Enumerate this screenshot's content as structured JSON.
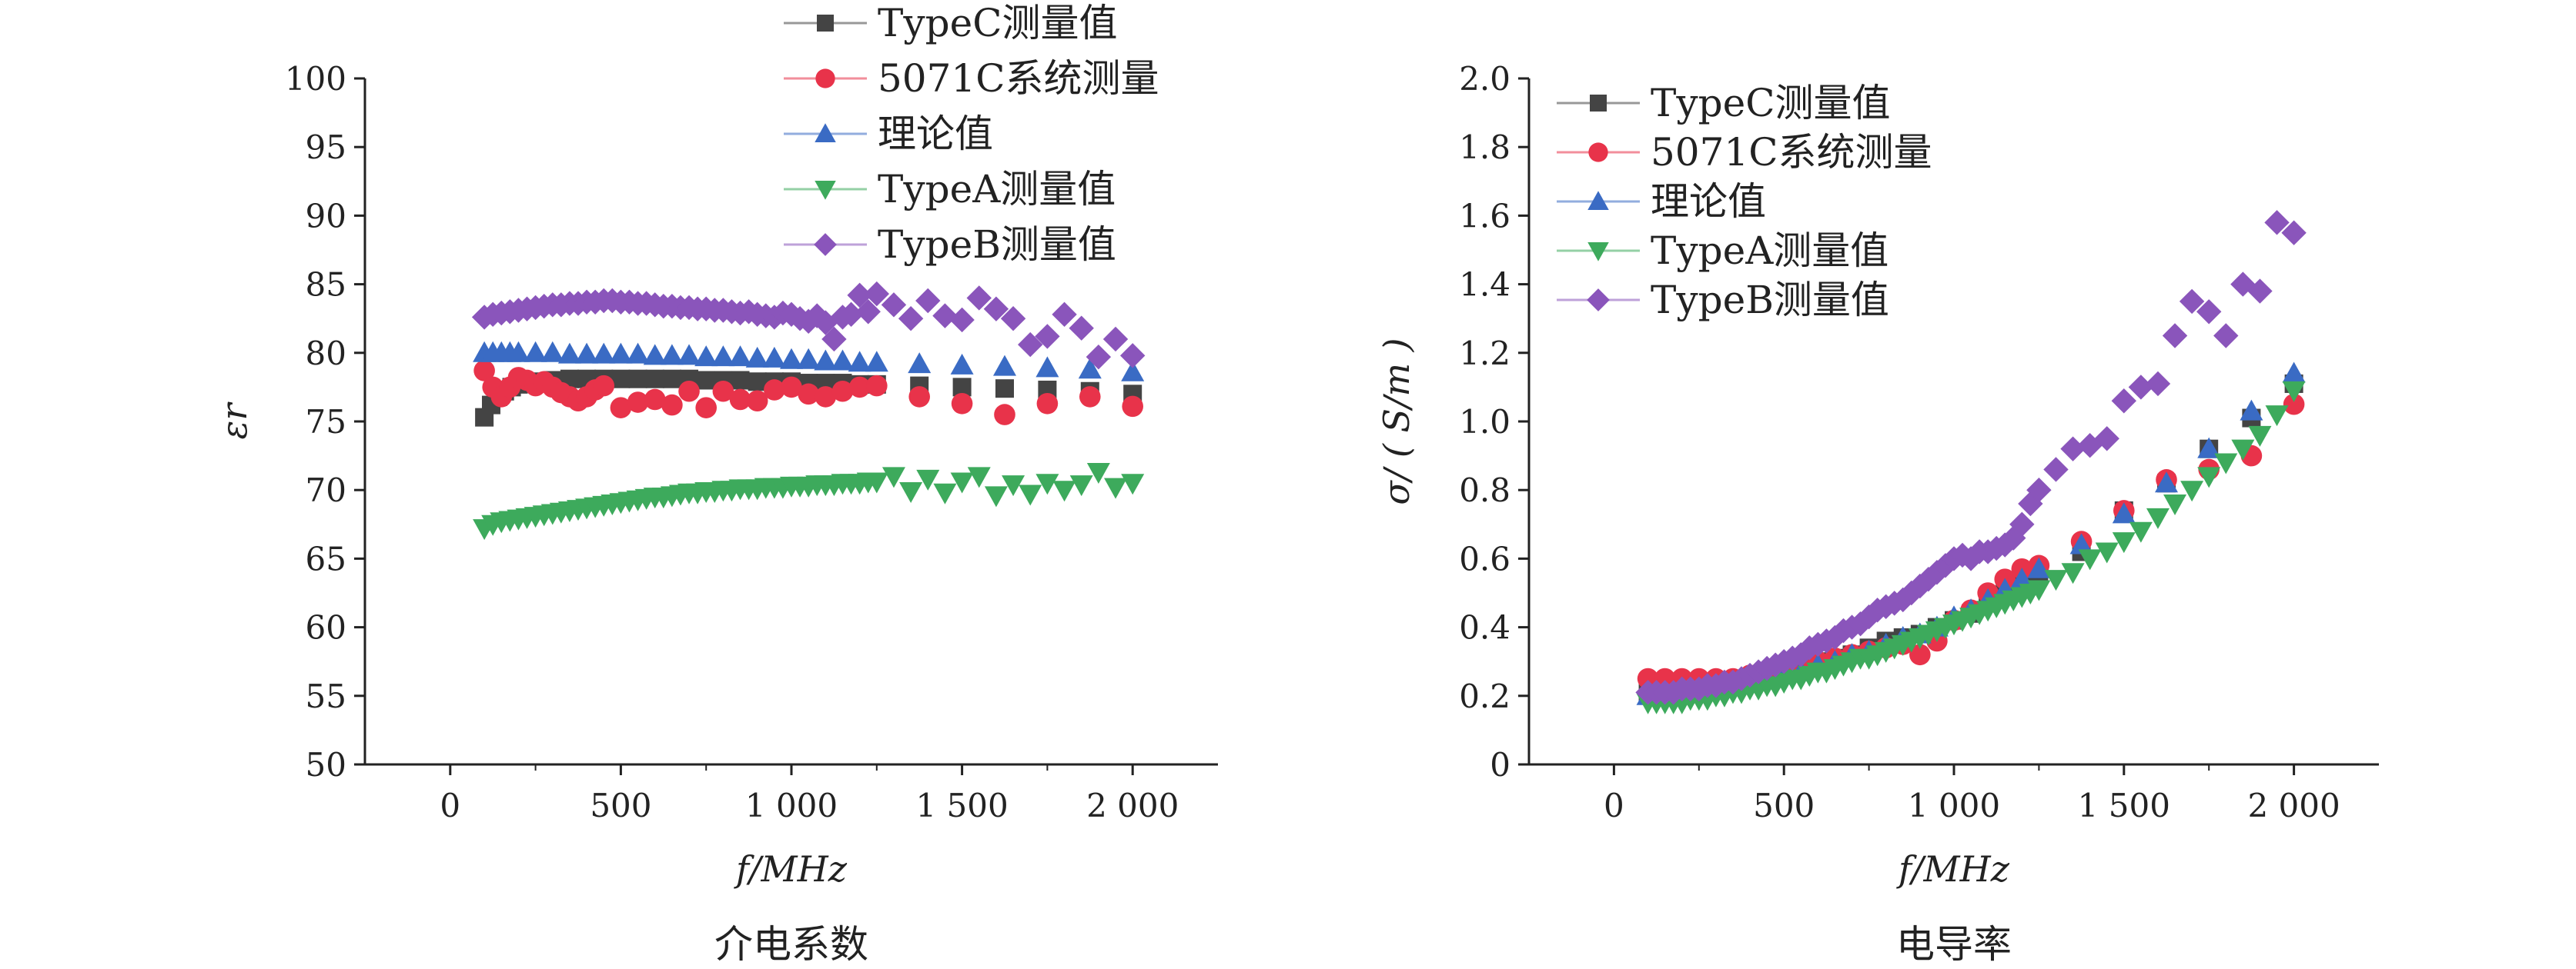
{
  "chart_data": [
    {
      "type": "scatter",
      "subtitle": "介电系数",
      "xlabel": "f/MHz",
      "ylabel": "εr",
      "xlim": [
        -250,
        2250
      ],
      "ylim": [
        50,
        100
      ],
      "xticks": [
        0,
        500,
        1000,
        1500,
        2000
      ],
      "xtick_labels": [
        "0",
        "500",
        "1 000",
        "1 500",
        "2 000"
      ],
      "yticks": [
        50,
        55,
        60,
        65,
        70,
        75,
        80,
        85,
        90,
        95,
        100
      ],
      "ytick_labels": [
        "50",
        "55",
        "60",
        "65",
        "70",
        "75",
        "80",
        "85",
        "90",
        "95",
        "100"
      ],
      "grid": false,
      "legend_position": "top, above plot",
      "series": [
        {
          "name": "TypeC测量值",
          "color": "#444444",
          "marker": "square",
          "x": [
            100,
            120,
            140,
            160,
            180,
            200,
            250,
            300,
            350,
            400,
            450,
            500,
            550,
            600,
            650,
            700,
            750,
            800,
            850,
            900,
            950,
            1000,
            1050,
            1100,
            1150,
            1200,
            1250,
            1375,
            1500,
            1625,
            1750,
            1875,
            2000
          ],
          "y": [
            75.3,
            76.2,
            76.8,
            77.2,
            77.5,
            77.7,
            77.9,
            78.0,
            78.1,
            78.1,
            78.1,
            78.1,
            78.1,
            78.1,
            78.1,
            78.1,
            78.0,
            78.0,
            78.0,
            77.9,
            77.9,
            77.9,
            77.8,
            77.8,
            77.8,
            77.7,
            77.7,
            77.6,
            77.5,
            77.4,
            77.3,
            77.2,
            77.0
          ]
        },
        {
          "name": "5071C系统测量",
          "color": "#e8334a",
          "marker": "circle",
          "x": [
            100,
            125,
            150,
            175,
            200,
            225,
            250,
            275,
            300,
            325,
            350,
            375,
            400,
            425,
            450,
            500,
            550,
            600,
            650,
            700,
            750,
            800,
            850,
            900,
            950,
            1000,
            1050,
            1100,
            1150,
            1200,
            1250,
            1375,
            1500,
            1625,
            1750,
            1875,
            2000
          ],
          "y": [
            78.7,
            77.5,
            76.8,
            77.5,
            78.2,
            78.0,
            77.6,
            77.9,
            77.5,
            77.1,
            76.8,
            76.5,
            76.8,
            77.3,
            77.6,
            76.0,
            76.4,
            76.6,
            76.2,
            77.2,
            76.0,
            77.2,
            76.6,
            76.5,
            77.3,
            77.5,
            77.0,
            76.8,
            77.2,
            77.5,
            77.6,
            76.8,
            76.3,
            75.5,
            76.3,
            76.8,
            76.1
          ]
        },
        {
          "name": "理论值",
          "color": "#3a6bc4",
          "marker": "triangle-up",
          "x": [
            100,
            125,
            150,
            175,
            200,
            250,
            300,
            350,
            400,
            450,
            500,
            550,
            600,
            650,
            700,
            750,
            800,
            850,
            900,
            950,
            1000,
            1050,
            1100,
            1150,
            1200,
            1250,
            1375,
            1500,
            1625,
            1750,
            1875,
            2000
          ],
          "y": [
            80.0,
            80.0,
            80.0,
            80.0,
            80.0,
            80.0,
            80.0,
            79.9,
            79.9,
            79.9,
            79.9,
            79.9,
            79.8,
            79.8,
            79.8,
            79.7,
            79.7,
            79.7,
            79.6,
            79.6,
            79.5,
            79.5,
            79.4,
            79.4,
            79.3,
            79.3,
            79.2,
            79.1,
            79.0,
            78.9,
            78.8,
            78.6
          ]
        },
        {
          "name": "TypeA测量值",
          "color": "#3daa5c",
          "marker": "triangle-down",
          "x": [
            100,
            125,
            150,
            175,
            200,
            225,
            250,
            275,
            300,
            325,
            350,
            375,
            400,
            425,
            450,
            475,
            500,
            525,
            550,
            575,
            600,
            625,
            650,
            675,
            700,
            725,
            750,
            775,
            800,
            825,
            850,
            875,
            900,
            925,
            950,
            975,
            1000,
            1025,
            1050,
            1075,
            1100,
            1125,
            1150,
            1175,
            1200,
            1225,
            1250,
            1300,
            1350,
            1400,
            1450,
            1500,
            1550,
            1600,
            1650,
            1700,
            1750,
            1800,
            1850,
            1900,
            1950,
            2000
          ],
          "y": [
            67.2,
            67.5,
            67.7,
            67.8,
            67.9,
            68.0,
            68.1,
            68.2,
            68.3,
            68.4,
            68.5,
            68.6,
            68.7,
            68.8,
            68.9,
            69.0,
            69.1,
            69.2,
            69.3,
            69.4,
            69.5,
            69.5,
            69.6,
            69.7,
            69.8,
            69.8,
            69.9,
            69.9,
            70.0,
            70.0,
            70.1,
            70.1,
            70.1,
            70.2,
            70.2,
            70.2,
            70.3,
            70.3,
            70.3,
            70.4,
            70.4,
            70.4,
            70.5,
            70.5,
            70.5,
            70.6,
            70.6,
            71.0,
            69.9,
            70.8,
            69.8,
            70.6,
            71.0,
            69.6,
            70.4,
            69.7,
            70.5,
            70.0,
            70.4,
            71.3,
            70.2,
            70.5
          ]
        },
        {
          "name": "TypeB测量值",
          "color": "#8a55bb",
          "marker": "diamond",
          "x": [
            100,
            125,
            150,
            175,
            200,
            225,
            250,
            275,
            300,
            325,
            350,
            375,
            400,
            425,
            450,
            475,
            500,
            525,
            550,
            575,
            600,
            625,
            650,
            675,
            700,
            725,
            750,
            775,
            800,
            825,
            850,
            875,
            900,
            925,
            950,
            975,
            1000,
            1025,
            1050,
            1075,
            1100,
            1125,
            1150,
            1175,
            1200,
            1225,
            1250,
            1300,
            1350,
            1400,
            1450,
            1500,
            1550,
            1600,
            1650,
            1700,
            1750,
            1800,
            1850,
            1900,
            1950,
            2000
          ],
          "y": [
            82.6,
            82.8,
            82.9,
            83.0,
            83.1,
            83.2,
            83.3,
            83.4,
            83.5,
            83.5,
            83.6,
            83.6,
            83.7,
            83.7,
            83.8,
            83.8,
            83.7,
            83.7,
            83.6,
            83.6,
            83.5,
            83.4,
            83.4,
            83.3,
            83.3,
            83.2,
            83.2,
            83.1,
            83.1,
            83.0,
            82.9,
            83.0,
            82.8,
            82.7,
            82.6,
            82.9,
            82.8,
            82.5,
            82.3,
            82.7,
            82.2,
            81.0,
            82.6,
            82.8,
            84.2,
            83.0,
            84.3,
            83.5,
            82.5,
            83.8,
            82.7,
            82.4,
            84.0,
            83.2,
            82.5,
            80.6,
            81.2,
            82.8,
            81.8,
            79.7,
            81.0,
            79.8
          ]
        }
      ]
    },
    {
      "type": "scatter",
      "subtitle": "电导率",
      "xlabel": "f/MHz",
      "ylabel": "σ/ ( S/m )",
      "xlim": [
        -250,
        2250
      ],
      "ylim": [
        0,
        2.0
      ],
      "xticks": [
        0,
        500,
        1000,
        1500,
        2000
      ],
      "xtick_labels": [
        "0",
        "500",
        "1 000",
        "1 500",
        "2 000"
      ],
      "yticks": [
        0,
        0.2,
        0.4,
        0.6,
        0.8,
        1.0,
        1.2,
        1.4,
        1.6,
        1.8,
        2.0
      ],
      "ytick_labels": [
        "0",
        "0.2",
        "0.4",
        "0.6",
        "0.8",
        "1.0",
        "1.2",
        "1.4",
        "1.6",
        "1.8",
        "2.0"
      ],
      "grid": false,
      "legend_position": "top-left, inside plot",
      "series": [
        {
          "name": "TypeC测量值",
          "color": "#444444",
          "marker": "square",
          "x": [
            100,
            150,
            200,
            250,
            300,
            350,
            400,
            450,
            500,
            550,
            600,
            650,
            700,
            750,
            800,
            850,
            900,
            950,
            1000,
            1050,
            1100,
            1150,
            1200,
            1250,
            1375,
            1500,
            1625,
            1750,
            1875,
            2000
          ],
          "y": [
            0.21,
            0.21,
            0.22,
            0.22,
            0.23,
            0.24,
            0.25,
            0.26,
            0.27,
            0.29,
            0.3,
            0.31,
            0.32,
            0.34,
            0.36,
            0.37,
            0.38,
            0.4,
            0.42,
            0.44,
            0.47,
            0.5,
            0.53,
            0.56,
            0.62,
            0.74,
            0.82,
            0.92,
            1.01,
            1.11
          ]
        },
        {
          "name": "5071C系统测量",
          "color": "#e8334a",
          "marker": "circle",
          "x": [
            100,
            150,
            200,
            250,
            300,
            350,
            400,
            450,
            500,
            550,
            600,
            650,
            700,
            750,
            800,
            850,
            900,
            950,
            1000,
            1050,
            1100,
            1150,
            1200,
            1250,
            1375,
            1500,
            1625,
            1750,
            1875,
            2000
          ],
          "y": [
            0.25,
            0.25,
            0.25,
            0.25,
            0.25,
            0.25,
            0.26,
            0.27,
            0.28,
            0.29,
            0.3,
            0.31,
            0.32,
            0.33,
            0.34,
            0.35,
            0.32,
            0.36,
            0.42,
            0.45,
            0.5,
            0.54,
            0.57,
            0.58,
            0.65,
            0.74,
            0.83,
            0.86,
            0.9,
            1.05
          ]
        },
        {
          "name": "理论值",
          "color": "#3a6bc4",
          "marker": "triangle-up",
          "x": [
            100,
            150,
            200,
            250,
            300,
            350,
            400,
            450,
            500,
            550,
            600,
            650,
            700,
            750,
            800,
            850,
            900,
            950,
            1000,
            1050,
            1100,
            1150,
            1200,
            1250,
            1375,
            1500,
            1625,
            1750,
            1875,
            2000
          ],
          "y": [
            0.2,
            0.2,
            0.21,
            0.21,
            0.22,
            0.23,
            0.24,
            0.25,
            0.26,
            0.27,
            0.29,
            0.3,
            0.32,
            0.33,
            0.35,
            0.37,
            0.38,
            0.4,
            0.43,
            0.45,
            0.48,
            0.51,
            0.54,
            0.57,
            0.64,
            0.73,
            0.82,
            0.92,
            1.03,
            1.14
          ]
        },
        {
          "name": "TypeA测量值",
          "color": "#3daa5c",
          "marker": "triangle-down",
          "x": [
            100,
            125,
            150,
            175,
            200,
            225,
            250,
            275,
            300,
            325,
            350,
            375,
            400,
            425,
            450,
            475,
            500,
            525,
            550,
            575,
            600,
            625,
            650,
            675,
            700,
            725,
            750,
            775,
            800,
            825,
            850,
            875,
            900,
            925,
            950,
            975,
            1000,
            1025,
            1050,
            1075,
            1100,
            1125,
            1150,
            1175,
            1200,
            1225,
            1250,
            1300,
            1350,
            1400,
            1450,
            1500,
            1550,
            1600,
            1650,
            1700,
            1750,
            1800,
            1850,
            1900,
            1950,
            2000
          ],
          "y": [
            0.18,
            0.18,
            0.18,
            0.18,
            0.18,
            0.19,
            0.19,
            0.19,
            0.2,
            0.2,
            0.21,
            0.21,
            0.22,
            0.22,
            0.23,
            0.23,
            0.24,
            0.25,
            0.25,
            0.26,
            0.27,
            0.27,
            0.28,
            0.29,
            0.3,
            0.31,
            0.31,
            0.32,
            0.33,
            0.34,
            0.35,
            0.36,
            0.37,
            0.38,
            0.39,
            0.4,
            0.41,
            0.42,
            0.43,
            0.44,
            0.45,
            0.46,
            0.47,
            0.48,
            0.49,
            0.5,
            0.51,
            0.54,
            0.56,
            0.6,
            0.62,
            0.65,
            0.68,
            0.72,
            0.76,
            0.8,
            0.84,
            0.88,
            0.92,
            0.96,
            1.02,
            1.09
          ]
        },
        {
          "name": "TypeB测量值",
          "color": "#8a55bb",
          "marker": "diamond",
          "x": [
            100,
            125,
            150,
            175,
            200,
            225,
            250,
            275,
            300,
            325,
            350,
            375,
            400,
            425,
            450,
            475,
            500,
            525,
            550,
            575,
            600,
            625,
            650,
            675,
            700,
            725,
            750,
            775,
            800,
            825,
            850,
            875,
            900,
            925,
            950,
            975,
            1000,
            1025,
            1050,
            1075,
            1100,
            1125,
            1150,
            1175,
            1200,
            1225,
            1250,
            1300,
            1350,
            1400,
            1450,
            1500,
            1550,
            1600,
            1650,
            1700,
            1750,
            1800,
            1850,
            1900,
            1950,
            2000
          ],
          "y": [
            0.21,
            0.21,
            0.21,
            0.21,
            0.22,
            0.22,
            0.22,
            0.23,
            0.23,
            0.24,
            0.24,
            0.25,
            0.26,
            0.27,
            0.28,
            0.29,
            0.3,
            0.31,
            0.32,
            0.34,
            0.35,
            0.36,
            0.37,
            0.39,
            0.4,
            0.41,
            0.43,
            0.45,
            0.46,
            0.47,
            0.48,
            0.5,
            0.52,
            0.54,
            0.56,
            0.58,
            0.6,
            0.61,
            0.6,
            0.62,
            0.62,
            0.63,
            0.64,
            0.66,
            0.7,
            0.76,
            0.8,
            0.86,
            0.92,
            0.93,
            0.95,
            1.06,
            1.1,
            1.11,
            1.25,
            1.35,
            1.32,
            1.25,
            1.4,
            1.38,
            1.58,
            1.55
          ]
        }
      ]
    }
  ]
}
